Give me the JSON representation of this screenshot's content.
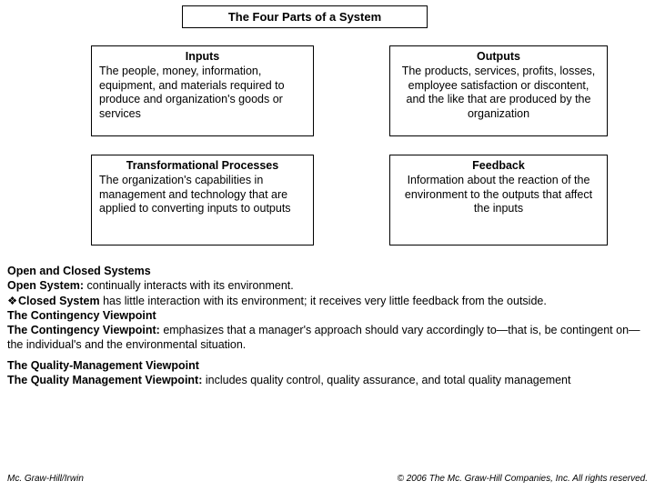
{
  "title": "The Four Parts of  a System",
  "boxes": {
    "inputs": {
      "title": "Inputs",
      "body": "The people, money, information, equipment, and materials required to produce and organization's goods or services"
    },
    "outputs": {
      "title": "Outputs",
      "body": "The products, services, profits, losses, employee satisfaction or discontent, and the like that are produced by the  organization"
    },
    "processes": {
      "title": "Transformational Processes",
      "body": "The organization's capabilities in management and technology that are applied to converting inputs to outputs"
    },
    "feedback": {
      "title": "Feedback",
      "body": "Information about the reaction of the environment to the outputs that affect the inputs"
    }
  },
  "notes": {
    "l1": "Open and Closed Systems",
    "l2a": "Open System:",
    "l2b": " continually interacts with its environment.",
    "l3a": "Closed System",
    "l3b": " has little interaction with its environment; it receives very little feedback from the outside.",
    "l4": "The Contingency Viewpoint",
    "l5a": "The Contingency Viewpoint:",
    "l5b": " emphasizes that a manager's approach should vary accordingly to—that is, be contingent on—the individual's and the environmental situation.",
    "l6": "The Quality-Management Viewpoint",
    "l7a": "The Quality Management Viewpoint:",
    "l7b": " includes quality control, quality assurance, and total quality management"
  },
  "footer": {
    "left": "Mc. Graw-Hill/Irwin",
    "right": "© 2006 The Mc. Graw-Hill Companies, Inc. All rights reserved."
  },
  "bullet_glyph": "❖"
}
